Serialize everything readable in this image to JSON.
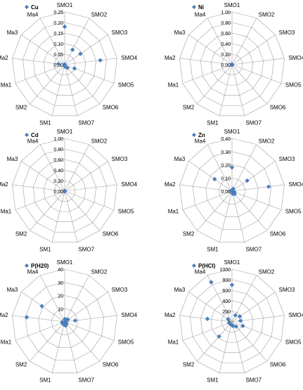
{
  "chart_data": [
    {
      "type": "radar",
      "legend": "Cu",
      "categories": [
        "SMO1",
        "SMO2",
        "SMO3",
        "SMO4",
        "SMO5",
        "SMO6",
        "SMO7",
        "SM1",
        "SM2",
        "Ma1",
        "Ma2",
        "Ma3",
        "Ma4"
      ],
      "ticks": [
        "0.00",
        "0.05",
        "0.10",
        "0.15",
        "0.20",
        "0.25"
      ],
      "rmax": 0.25,
      "values": [
        0.18,
        0.08,
        0.09,
        0.17,
        0.05,
        0.02,
        0.01,
        0.0,
        0.0,
        0.0,
        0.03,
        0.0,
        0.0
      ],
      "color": "#4a7ebb"
    },
    {
      "type": "radar",
      "legend": "Ni",
      "categories": [
        "SMO1",
        "SMO2",
        "SMO3",
        "SMO4",
        "SMO5",
        "SMO6",
        "SMO7",
        "SM1",
        "SM2",
        "Ma1",
        "Ma2",
        "Ma3",
        "Ma4"
      ],
      "ticks": [
        "0.00",
        "0.20",
        "0.40",
        "0.60",
        "0.80",
        "1.00"
      ],
      "rmax": 1.0,
      "values": [
        0,
        0,
        0,
        0,
        0,
        0,
        0,
        0,
        0,
        0,
        0,
        0,
        0
      ],
      "color": "#4a7ebb"
    },
    {
      "type": "radar",
      "legend": "Cd",
      "categories": [
        "SMO1",
        "SMO2",
        "SMO3",
        "SMO4",
        "SMO5",
        "SMO6",
        "SMO7",
        "SM1",
        "SM2",
        "Ma1",
        "Ma2",
        "Ma3",
        "Ma4"
      ],
      "ticks": [
        "0.00",
        "0.20",
        "0.40",
        "0.60",
        "0.80",
        "1.00"
      ],
      "rmax": 1.0,
      "values": [
        0,
        0,
        0,
        0,
        0,
        0,
        0,
        0,
        0,
        0,
        0,
        0,
        0
      ],
      "color": "#4a7ebb"
    },
    {
      "type": "radar",
      "legend": "Zn",
      "categories": [
        "SMO1",
        "SMO2",
        "SMO3",
        "SMO4",
        "SMO5",
        "SMO6",
        "SMO7",
        "SM1",
        "SM2",
        "Ma1",
        "Ma2",
        "Ma3",
        "Ma4"
      ],
      "ticks": [
        "0.00",
        "0.10",
        "0.20",
        "0.30",
        "0.40"
      ],
      "rmax": 0.4,
      "values": [
        0.18,
        0.02,
        0.14,
        0.28,
        0.02,
        0.03,
        0.02,
        0.0,
        0.0,
        0.0,
        0.01,
        0.16,
        0.0
      ],
      "color": "#4a7ebb"
    },
    {
      "type": "radar",
      "legend": "P(H20)",
      "categories": [
        "SMO1",
        "SMO2",
        "SMO3",
        "SMO4",
        "SMO5",
        "SMO6",
        "SMO7",
        "SM1",
        "SM2",
        "Ma1",
        "Ma2",
        "Ma3",
        "Ma4"
      ],
      "ticks": [
        "0",
        "10",
        "20",
        "30",
        "40"
      ],
      "rmax": 40,
      "values": [
        2,
        2,
        3,
        8,
        1,
        2,
        3,
        2,
        2,
        2,
        29,
        21,
        0
      ],
      "color": "#4a7ebb"
    },
    {
      "type": "radar",
      "legend": "P(HCl)",
      "categories": [
        "SMO1",
        "SMO2",
        "SMO3",
        "SMO4",
        "SMO5",
        "SMO6",
        "SMO7",
        "SM1",
        "SM2",
        "Ma1",
        "Ma2",
        "Ma3",
        "Ma4"
      ],
      "ticks": [
        "0",
        "200",
        "400",
        "600",
        "800",
        "1000"
      ],
      "rmax": 1000,
      "values": [
        700,
        140,
        180,
        160,
        220,
        120,
        80,
        60,
        370,
        60,
        470,
        90,
        850
      ],
      "color": "#4a7ebb"
    }
  ]
}
